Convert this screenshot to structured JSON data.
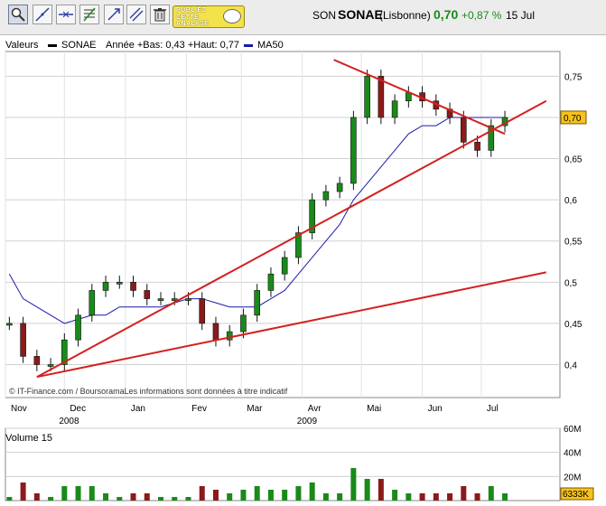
{
  "toolbar": {
    "buttons": [
      {
        "icon": "zoom-icon",
        "selected": true
      },
      {
        "icon": "draw-line-icon"
      },
      {
        "icon": "horizontal-line-icon"
      },
      {
        "icon": "fibonacci-icon"
      },
      {
        "icon": "arrow-line-icon"
      },
      {
        "icon": "parallel-lines-icon"
      },
      {
        "icon": "trash-icon"
      }
    ],
    "ad_text": "PUBLIEZ\nCETTE\nANALYSE"
  },
  "quote": {
    "code": "SON",
    "name": "SONAE",
    "exchange": "(Lisbonne)",
    "price": "0,70",
    "change": "+0,87 %",
    "date": "15 Jul"
  },
  "legend": {
    "label": "Valeurs",
    "series": "SONAE",
    "range": "Année +Bas: 0,43 +Haut: 0,77",
    "ma": "MA50"
  },
  "colors": {
    "up": "#1a8a1a",
    "down": "#8b1a1a",
    "ma": "#1a1aa8",
    "trend": "#d42020",
    "price_tag": "#f6c21b"
  },
  "chart_data": {
    "type": "line",
    "title": "SONAE",
    "credit": "© IT-Finance.com / BoursoramaLes informations sont données à titre indicatif",
    "current_price_label": "0,70",
    "y_ticks": [
      "0,75",
      "0,7",
      "0,65",
      "0,6",
      "0,55",
      "0,5",
      "0,45",
      "0,4"
    ],
    "ylim": [
      0.36,
      0.78
    ],
    "x_months": [
      "Nov",
      "Dec",
      "Jan",
      "Fev",
      "Mar",
      "Avr",
      "Mai",
      "Jun",
      "Jul"
    ],
    "x_years": [
      "2008",
      "2009"
    ],
    "x_dates": [
      "2008-11-03",
      "2008-11-10",
      "2008-11-17",
      "2008-11-24",
      "2008-12-01",
      "2008-12-08",
      "2008-12-15",
      "2008-12-22",
      "2008-12-29",
      "2009-01-05",
      "2009-01-12",
      "2009-01-19",
      "2009-01-26",
      "2009-02-02",
      "2009-02-09",
      "2009-02-16",
      "2009-02-23",
      "2009-03-02",
      "2009-03-09",
      "2009-03-16",
      "2009-03-23",
      "2009-03-30",
      "2009-04-06",
      "2009-04-13",
      "2009-04-20",
      "2009-04-27",
      "2009-05-04",
      "2009-05-11",
      "2009-05-18",
      "2009-05-25",
      "2009-06-01",
      "2009-06-08",
      "2009-06-15",
      "2009-06-22",
      "2009-06-29",
      "2009-07-06",
      "2009-07-13"
    ],
    "close": [
      0.45,
      0.41,
      0.4,
      0.4,
      0.43,
      0.46,
      0.49,
      0.5,
      0.5,
      0.49,
      0.48,
      0.48,
      0.48,
      0.48,
      0.45,
      0.43,
      0.44,
      0.46,
      0.49,
      0.51,
      0.53,
      0.56,
      0.6,
      0.61,
      0.62,
      0.7,
      0.75,
      0.7,
      0.72,
      0.73,
      0.72,
      0.71,
      0.7,
      0.67,
      0.66,
      0.69,
      0.7
    ],
    "ma50": [
      0.51,
      0.48,
      0.47,
      0.46,
      0.45,
      0.455,
      0.46,
      0.46,
      0.47,
      0.47,
      0.47,
      0.47,
      0.475,
      0.48,
      0.48,
      0.475,
      0.47,
      0.47,
      0.47,
      0.48,
      0.49,
      0.51,
      0.53,
      0.55,
      0.57,
      0.6,
      0.62,
      0.64,
      0.66,
      0.68,
      0.69,
      0.69,
      0.7,
      0.7,
      0.7,
      0.7,
      0.7
    ],
    "trendlines": [
      {
        "from": [
          "2008-11-17",
          0.385
        ],
        "to": [
          "2009-08-03",
          0.512
        ]
      },
      {
        "from": [
          "2008-11-17",
          0.385
        ],
        "to": [
          "2009-08-03",
          0.72
        ]
      },
      {
        "from": [
          "2009-04-17",
          0.77
        ],
        "to": [
          "2009-07-13",
          0.68
        ]
      }
    ],
    "volume": {
      "label": "Volume 15",
      "y_ticks": [
        "60M",
        "40M",
        "20M"
      ],
      "current_label": "6333K",
      "ylim": [
        0,
        60
      ]
    }
  }
}
